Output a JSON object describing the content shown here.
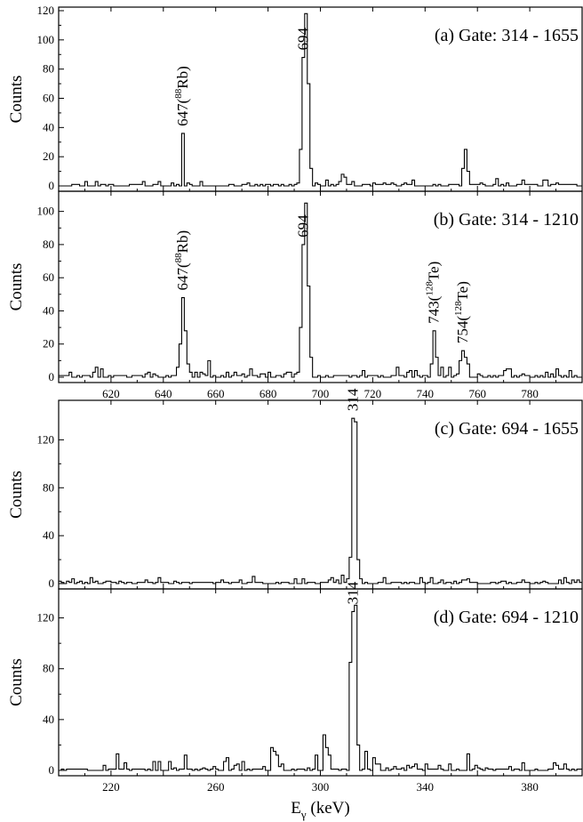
{
  "chart_data": [
    {
      "type": "line",
      "step": true,
      "panel": "a",
      "title": "(a) Gate: 314 - 1655",
      "xlabel": "",
      "ylabel": "Counts",
      "xlim": [
        600,
        800
      ],
      "ylim": [
        0,
        120
      ],
      "x_ticks": [
        620,
        640,
        660,
        680,
        700,
        720,
        740,
        760,
        780
      ],
      "x_tick_labels": [],
      "y_ticks": [
        0,
        20,
        40,
        60,
        80,
        100,
        120
      ],
      "annotations": [
        {
          "base": "647(",
          "sup": "88",
          "rest": "Rb)",
          "x": 647.5
        },
        {
          "base": "694",
          "sup": "",
          "rest": "",
          "x": 693.5
        }
      ],
      "series": [
        {
          "peaks": [
            [
              647.5,
              36
            ],
            [
              692.5,
              25
            ],
            [
              693.5,
              88
            ],
            [
              694.5,
              118
            ],
            [
              695.5,
              70
            ],
            [
              696.5,
              12
            ],
            [
              754.5,
              12
            ],
            [
              755.5,
              25
            ],
            [
              756.5,
              10
            ],
            [
              708.5,
              8
            ],
            [
              709.5,
              6
            ]
          ],
          "noise_amp": 3.5,
          "seed": 11
        }
      ]
    },
    {
      "type": "line",
      "step": true,
      "panel": "b",
      "title": "(b) Gate: 314 - 1210",
      "xlabel": "",
      "ylabel": "Counts",
      "xlim": [
        600,
        800
      ],
      "ylim": [
        0,
        110
      ],
      "x_ticks": [
        620,
        640,
        660,
        680,
        700,
        720,
        740,
        760,
        780
      ],
      "x_tick_labels": [
        "620",
        "640",
        "660",
        "680",
        "700",
        "720",
        "740",
        "760",
        "780"
      ],
      "y_ticks": [
        0,
        20,
        40,
        60,
        80,
        100
      ],
      "annotations": [
        {
          "base": "647(",
          "sup": "88",
          "rest": "Rb)",
          "x": 647.5
        },
        {
          "base": "694",
          "sup": "",
          "rest": "",
          "x": 693.5
        },
        {
          "base": "743(",
          "sup": "128",
          "rest": "Te)",
          "x": 743.5
        },
        {
          "base": "754(",
          "sup": "128",
          "rest": "Te)",
          "x": 754.5
        }
      ],
      "series": [
        {
          "peaks": [
            [
              646.5,
              20
            ],
            [
              647.5,
              48
            ],
            [
              648.5,
              28
            ],
            [
              649.5,
              8
            ],
            [
              657.5,
              10
            ],
            [
              692.5,
              30
            ],
            [
              693.5,
              80
            ],
            [
              694.5,
              105
            ],
            [
              695.5,
              55
            ],
            [
              696.5,
              12
            ],
            [
              742.5,
              8
            ],
            [
              743.5,
              28
            ],
            [
              744.5,
              12
            ],
            [
              753.5,
              10
            ],
            [
              754.5,
              16
            ],
            [
              755.5,
              12
            ],
            [
              756.5,
              8
            ]
          ],
          "noise_amp": 5,
          "seed": 29
        }
      ]
    },
    {
      "type": "line",
      "step": true,
      "panel": "c",
      "title": "(c) Gate: 694 - 1655",
      "xlabel": "",
      "ylabel": "Counts",
      "xlim": [
        200,
        400
      ],
      "ylim": [
        0,
        150
      ],
      "x_ticks": [
        220,
        240,
        260,
        280,
        300,
        320,
        340,
        360,
        380
      ],
      "x_tick_labels": [],
      "y_ticks": [
        0,
        40,
        80,
        120
      ],
      "annotations": [
        {
          "base": "314",
          "sup": "",
          "rest": "",
          "x": 312.5
        }
      ],
      "series": [
        {
          "peaks": [
            [
              311.5,
              22
            ],
            [
              312.5,
              138
            ],
            [
              313.5,
              135
            ],
            [
              314.5,
              20
            ],
            [
              308.5,
              7
            ],
            [
              304.5,
              5
            ]
          ],
          "noise_amp": 5,
          "seed": 41
        }
      ]
    },
    {
      "type": "line",
      "step": true,
      "panel": "d",
      "title": "(d) Gate: 694 - 1210",
      "xlabel": "Eγ (keV)",
      "ylabel": "Counts",
      "xlim": [
        200,
        400
      ],
      "ylim": [
        0,
        140
      ],
      "x_ticks": [
        220,
        240,
        260,
        280,
        300,
        320,
        340,
        360,
        380
      ],
      "x_tick_labels": [
        "220",
        "260",
        "300",
        "340",
        "380"
      ],
      "y_ticks": [
        0,
        40,
        80,
        120
      ],
      "annotations": [
        {
          "base": "314",
          "sup": "",
          "rest": "",
          "x": 312.5
        }
      ],
      "series": [
        {
          "peaks": [
            [
              311.5,
              85
            ],
            [
              312.5,
              125
            ],
            [
              313.5,
              130
            ],
            [
              314.5,
              20
            ],
            [
              301.5,
              28
            ],
            [
              302.5,
              18
            ],
            [
              303.5,
              12
            ],
            [
              298.5,
              12
            ],
            [
              281.5,
              18
            ],
            [
              282.5,
              15
            ],
            [
              283.5,
              12
            ],
            [
              317.5,
              15
            ],
            [
              320.5,
              10
            ],
            [
              248.5,
              12
            ],
            [
              356.5,
              13
            ],
            [
              222.5,
              13
            ]
          ],
          "noise_amp": 7,
          "seed": 53
        }
      ]
    }
  ]
}
